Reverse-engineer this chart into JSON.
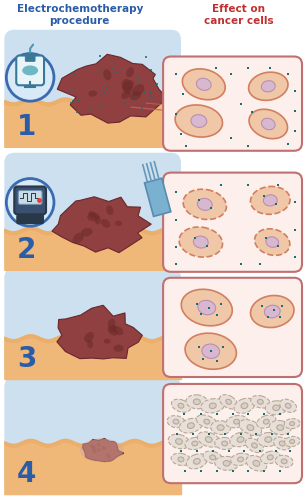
{
  "title_left": "Electrochemotherapy\nprocedure",
  "title_right": "Effect on\ncancer cells",
  "title_left_color": "#2b5ca8",
  "title_right_color": "#c03030",
  "bg_color": "#ffffff",
  "panel_bg_left": "#cce0f0",
  "panel_bg_skin": "#f0c090",
  "panel_bg_right": "#fdf0ec",
  "panel_border_right": "#c07070",
  "step_number_color": "#2b5ca8",
  "tumour_color": "#904040",
  "tumour_dark": "#6a2828",
  "tumour_texture": "#7a3030",
  "skin_color": "#f0b878",
  "skin_mid": "#e8a860",
  "cell_outer_fc": "#f0c8a8",
  "cell_outer_ec": "#d08060",
  "cell_nucleus_fc": "#d8b8d0",
  "cell_nucleus_ec": "#b890b0",
  "dot_color": "#1a7070",
  "dashed_cell_fc": "#f0c8a8",
  "dashed_cell_ec": "#d08060",
  "dead_cell_fc": "#e8e0d8",
  "dead_cell_ec": "#b8a898",
  "dead_nucleus_fc": "#d8d0c8",
  "iv_bag_body": "#e8f4f8",
  "iv_bag_border": "#3a7898",
  "iv_bag_liquid": "#50a8b8",
  "iv_tube": "#4a9ab0",
  "device_body": "#3a5070",
  "device_dark": "#283848",
  "device_screen": "#c8dce8",
  "electrode_body": "#7ab0d0",
  "electrode_dark": "#5a8ab0",
  "needle_color": "#6898b8",
  "circle_bg": "#d8eaf8",
  "circle_border": "#3a6ab0",
  "connector_line": "#c07070"
}
